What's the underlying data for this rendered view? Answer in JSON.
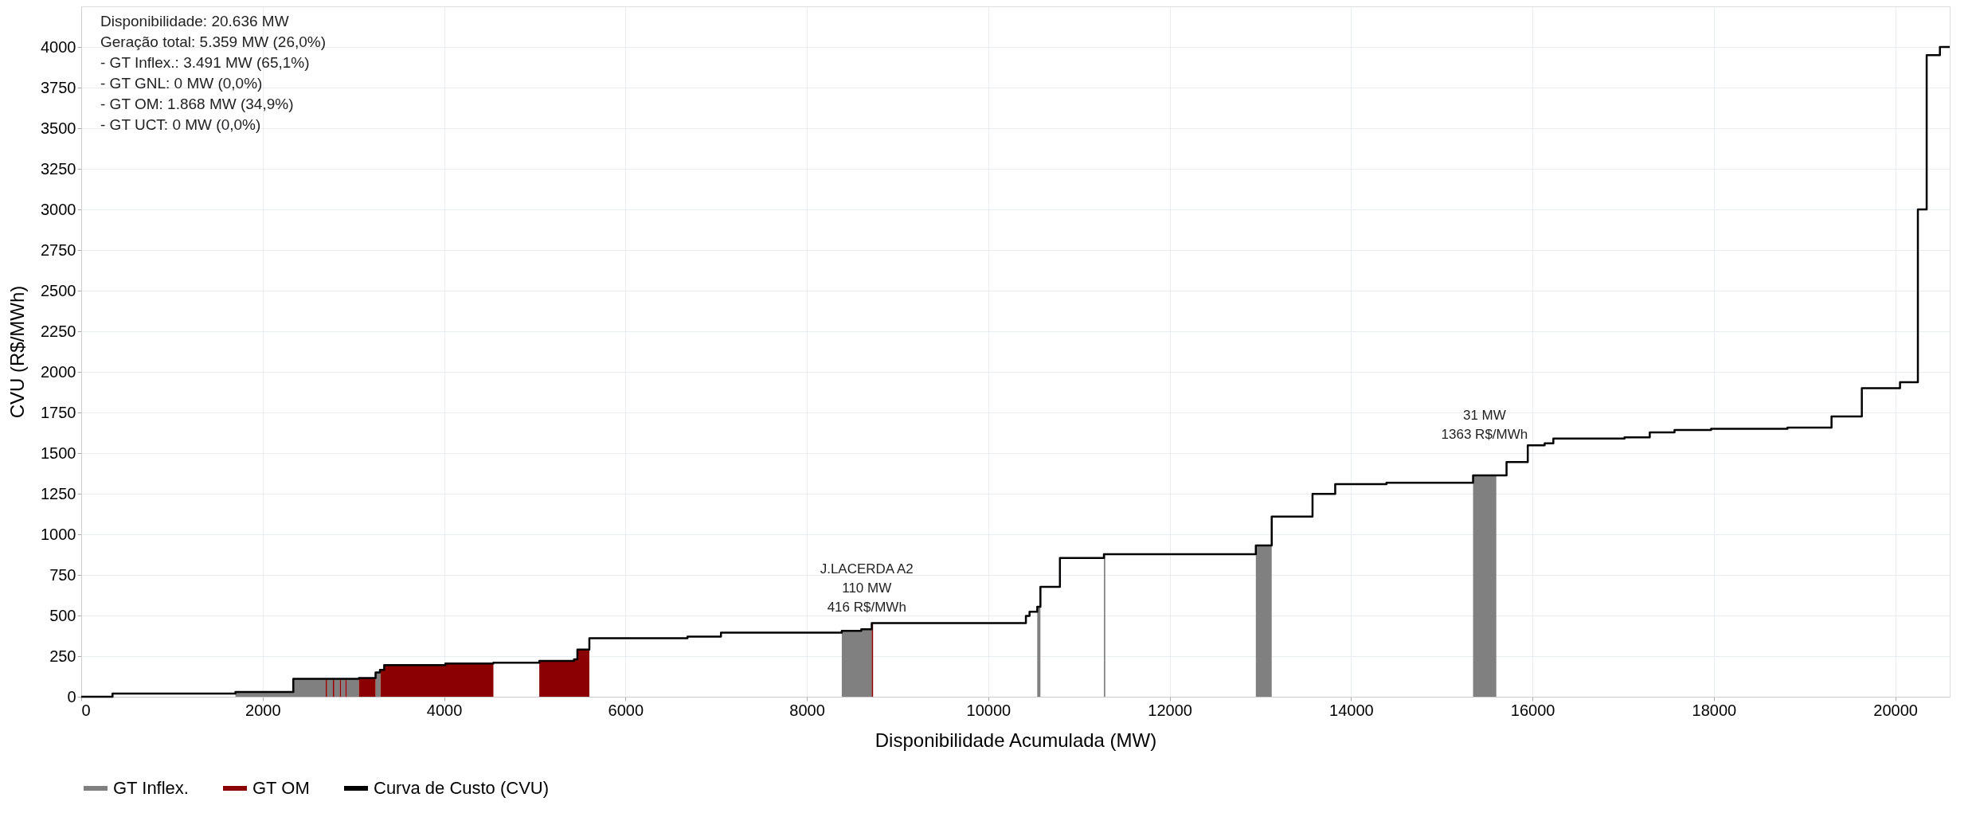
{
  "chart_data": {
    "type": "step",
    "xlabel": "Disponibilidade Acumulada (MW)",
    "ylabel": "CVU (R$/MWh)",
    "xlim": [
      0,
      20600
    ],
    "xticks": [
      0,
      2000,
      4000,
      6000,
      8000,
      10000,
      12000,
      14000,
      16000,
      18000,
      20000
    ],
    "ylim": [
      0,
      4250
    ],
    "yticks": [
      0,
      250,
      500,
      750,
      1000,
      1250,
      1500,
      1750,
      2000,
      2250,
      2500,
      2750,
      3000,
      3250,
      3500,
      3750,
      4000
    ],
    "grid": true,
    "legend": "bottom",
    "line_style": "solid",
    "series": [
      {
        "name": "GT Inflex.",
        "type": "area",
        "color": "#808080",
        "x": [
          1700,
          2338,
          2695,
          2710,
          2775,
          2790,
          2850,
          2865,
          2912,
          2927,
          3061,
          3245,
          3293,
          3300,
          8385,
          8600,
          8715,
          10540,
          10575,
          11275,
          11290,
          12950,
          13125,
          15345,
          15601
        ],
        "values": [
          30,
          110,
          0,
          110,
          0,
          110,
          0,
          110,
          0,
          110,
          0,
          150,
          165,
          0,
          406,
          416,
          0,
          554,
          0,
          877,
          0,
          931,
          0,
          1363,
          0
        ]
      },
      {
        "name": "GT OM",
        "type": "area",
        "color": "#8b0000",
        "x": [
          2695,
          2710,
          2775,
          2790,
          2850,
          2865,
          2912,
          2927,
          3061,
          3245,
          3300,
          3340,
          4015,
          4544,
          5050,
          5433,
          5470,
          5602,
          8715,
          8730
        ],
        "values": [
          110,
          0,
          110,
          0,
          110,
          0,
          110,
          0,
          115,
          0,
          165,
          195,
          205,
          0,
          220,
          230,
          290,
          0,
          454,
          0
        ]
      },
      {
        "name": "Curva de Custo (CVU)",
        "type": "step",
        "color": "#000000",
        "x": [
          0,
          345,
          1700,
          2338,
          3061,
          3245,
          3293,
          3340,
          4015,
          4544,
          5050,
          5433,
          5470,
          5602,
          6684,
          7053,
          8385,
          8600,
          8715,
          10415,
          10455,
          10540,
          10575,
          10790,
          11275,
          12950,
          13125,
          13575,
          13825,
          14390,
          15345,
          15714,
          15948,
          16134,
          16230,
          17015,
          17293,
          17566,
          17969,
          18811,
          19297,
          19631,
          20052,
          20249,
          20346,
          20492,
          20600
        ],
        "values": [
          0,
          20,
          30,
          110,
          115,
          150,
          165,
          195,
          205,
          210,
          220,
          230,
          290,
          360,
          370,
          395,
          406,
          416,
          454,
          497,
          523,
          554,
          677,
          854,
          877,
          931,
          1109,
          1249,
          1309,
          1317,
          1363,
          1445,
          1548,
          1560,
          1590,
          1597,
          1627,
          1642,
          1650,
          1657,
          1725,
          1900,
          1936,
          3000,
          3950,
          4000,
          4000
        ]
      }
    ],
    "annotations": [
      "Disponibilidade: 20.636 MW\nGeração total: 5.359 MW (26,0%)\n - GT Inflex.: 3.491 MW (65,1%)\n - GT GNL: 0 MW (0,0%)\n - GT OM: 1.868 MW (34,9%)\n - GT UCT: 0 MW (0,0%)",
      {
        "text": "J.LACERDA A2\n110 MW\n416 R$/MWh",
        "x": 8660,
        "y": 416
      },
      {
        "text": "31 MW\n1363 R$/MWh",
        "x": 15471,
        "y": 1363
      }
    ]
  }
}
